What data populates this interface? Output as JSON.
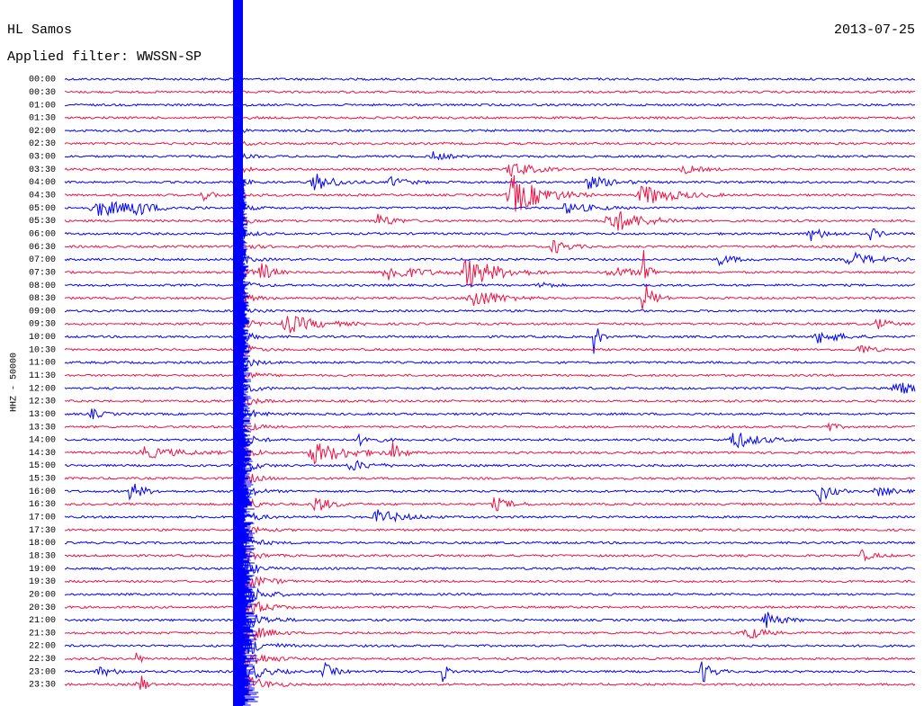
{
  "header": {
    "station": "HL Samos",
    "filter": "Applied filter: WWSSN-SP",
    "date": "2013-07-25"
  },
  "axis_label": "HHZ - 50000",
  "rows": [
    "00:00",
    "00:30",
    "01:00",
    "01:30",
    "02:00",
    "02:30",
    "03:00",
    "03:30",
    "04:00",
    "04:30",
    "05:00",
    "05:30",
    "06:00",
    "06:30",
    "07:00",
    "07:30",
    "08:00",
    "08:30",
    "09:00",
    "09:30",
    "10:00",
    "10:30",
    "11:00",
    "11:30",
    "12:00",
    "12:30",
    "13:00",
    "13:30",
    "14:00",
    "14:30",
    "15:00",
    "15:30",
    "16:00",
    "16:30",
    "17:00",
    "17:30",
    "18:00",
    "18:30",
    "19:00",
    "19:30",
    "20:00",
    "20:30",
    "21:00",
    "21:30",
    "22:00",
    "22:30",
    "23:00",
    "23:30"
  ]
}
